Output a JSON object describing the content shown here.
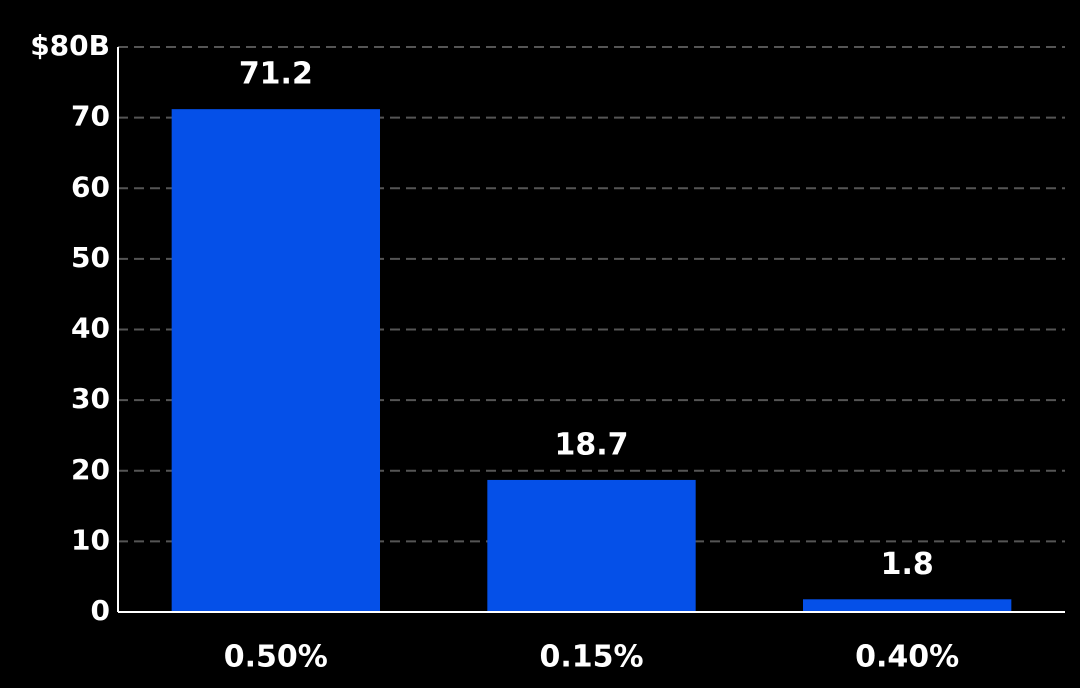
{
  "chart_data": {
    "type": "bar",
    "categories": [
      "0.50%",
      "0.15%",
      "0.40%"
    ],
    "values": [
      71.2,
      18.7,
      1.8
    ],
    "color": "#0550e8",
    "ylim": [
      0,
      80
    ],
    "yticks": [
      0,
      10,
      20,
      30,
      40,
      50,
      60,
      70,
      {
        "value": 80,
        "label": "$80B"
      }
    ],
    "grid": true
  }
}
